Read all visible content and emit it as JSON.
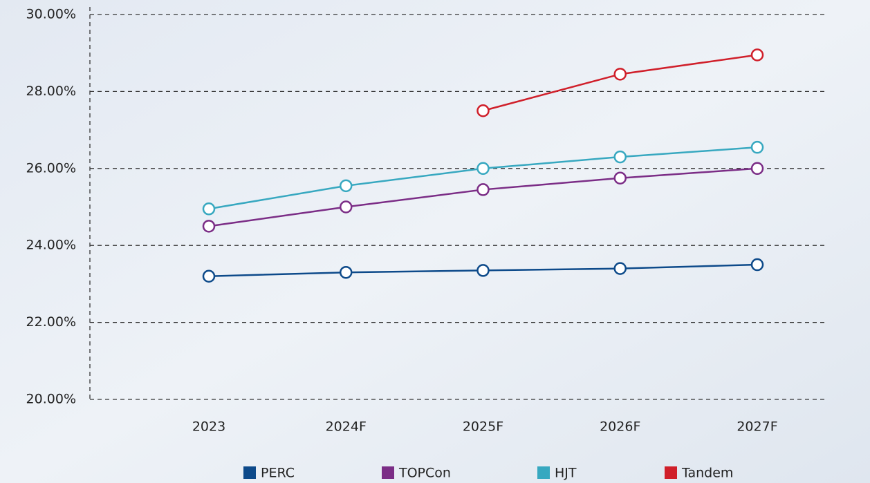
{
  "chart_data": {
    "type": "line",
    "categories": [
      "2023",
      "2024F",
      "2025F",
      "2026F",
      "2027F"
    ],
    "series": [
      {
        "name": "PERC",
        "color": "#0d4a8a",
        "values": [
          23.2,
          23.3,
          23.35,
          23.4,
          23.5
        ]
      },
      {
        "name": "TOPCon",
        "color": "#7b2d86",
        "values": [
          24.5,
          25.0,
          25.45,
          25.75,
          26.0
        ]
      },
      {
        "name": "HJT",
        "color": "#37a8c0",
        "values": [
          24.95,
          25.55,
          26.0,
          26.3,
          26.55
        ]
      },
      {
        "name": "Tandem",
        "color": "#d01f2a",
        "values": [
          null,
          null,
          27.5,
          28.45,
          28.95
        ]
      }
    ],
    "ylim": [
      20,
      30
    ],
    "yticks": [
      {
        "value": 20,
        "label": "20.00%"
      },
      {
        "value": 22,
        "label": "22.00%"
      },
      {
        "value": 24,
        "label": "24.00%"
      },
      {
        "value": 26,
        "label": "26.00%"
      },
      {
        "value": 28,
        "label": "28.00%"
      },
      {
        "value": 30,
        "label": "30.00%"
      }
    ],
    "grid": true,
    "legend": "bottom"
  }
}
